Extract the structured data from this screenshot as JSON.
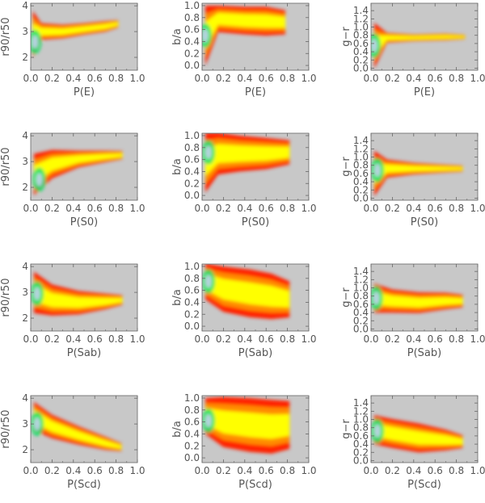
{
  "colors": {
    "panel_bg": "#c8c8c8",
    "axis": "#666666",
    "text": "#555555",
    "density_low": "#ff2000",
    "density_mid": "#ff8c00",
    "density_hi": "#ffff00",
    "density_top": "#00e060"
  },
  "chart_data": {
    "type": "heatmap",
    "rows": [
      "E",
      "S0",
      "Sab",
      "Scd"
    ],
    "columns": [
      "r90/r50",
      "b/a",
      "g-r"
    ],
    "x_ticks": [
      "0.0",
      "0.2",
      "0.4",
      "0.6",
      "0.8",
      "1.0"
    ],
    "xlim": [
      0,
      1
    ],
    "y_axes": {
      "r90/r50": {
        "ylabel": "r90/r50",
        "ylim": [
          1.5,
          4.1
        ],
        "ticks": [
          "2",
          "3",
          "4"
        ]
      },
      "b/a": {
        "ylabel": "b/a",
        "ylim": [
          -0.08,
          1.04
        ],
        "ticks": [
          "0.0",
          "0.2",
          "0.4",
          "0.6",
          "0.8",
          "1.0"
        ]
      },
      "g-r": {
        "ylabel": "g−r",
        "ylim": [
          -0.05,
          1.58
        ],
        "ticks": [
          "0.0",
          "0.2",
          "0.4",
          "0.6",
          "0.8",
          "1.0",
          "1.2",
          "1.4"
        ]
      }
    },
    "panels": [
      {
        "xlabel": "P(E)",
        "ylabel": "r90/r50",
        "ridge": [
          [
            0.02,
            2.9
          ],
          [
            0.1,
            3.0
          ],
          [
            0.3,
            3.0
          ],
          [
            0.5,
            3.1
          ],
          [
            0.7,
            3.2
          ],
          [
            0.82,
            3.3
          ]
        ],
        "halfwidth": [
          0.9,
          0.32,
          0.26,
          0.22,
          0.2,
          0.14
        ],
        "peak": [
          0.04,
          2.6
        ]
      },
      {
        "xlabel": "P(E)",
        "ylabel": "b/a",
        "ridge": [
          [
            0.03,
            0.5
          ],
          [
            0.15,
            0.78
          ],
          [
            0.4,
            0.75
          ],
          [
            0.6,
            0.74
          ],
          [
            0.78,
            0.72
          ]
        ],
        "halfwidth": [
          0.5,
          0.22,
          0.23,
          0.24,
          0.2
        ],
        "peak": [
          0.03,
          0.5
        ]
      },
      {
        "xlabel": "P(E)",
        "ylabel": "g−r",
        "ridge": [
          [
            0.03,
            0.55
          ],
          [
            0.15,
            0.74
          ],
          [
            0.4,
            0.74
          ],
          [
            0.7,
            0.76
          ],
          [
            0.88,
            0.76
          ]
        ],
        "halfwidth": [
          0.55,
          0.12,
          0.08,
          0.08,
          0.05
        ],
        "peak": [
          0.03,
          0.55
        ]
      },
      {
        "xlabel": "P(S0)",
        "ylabel": "r90/r50",
        "ridge": [
          [
            0.03,
            2.5
          ],
          [
            0.2,
            2.9
          ],
          [
            0.45,
            3.1
          ],
          [
            0.7,
            3.2
          ],
          [
            0.86,
            3.25
          ]
        ],
        "halfwidth": [
          0.8,
          0.55,
          0.32,
          0.22,
          0.15
        ],
        "peak": [
          0.08,
          2.3
        ]
      },
      {
        "xlabel": "P(S0)",
        "ylabel": "b/a",
        "ridge": [
          [
            0.03,
            0.55
          ],
          [
            0.15,
            0.7
          ],
          [
            0.35,
            0.7
          ],
          [
            0.6,
            0.7
          ],
          [
            0.82,
            0.72
          ]
        ],
        "halfwidth": [
          0.5,
          0.35,
          0.3,
          0.26,
          0.2
        ],
        "peak": [
          0.06,
          0.72
        ]
      },
      {
        "xlabel": "P(S0)",
        "ylabel": "g−r",
        "ridge": [
          [
            0.03,
            0.6
          ],
          [
            0.15,
            0.72
          ],
          [
            0.4,
            0.72
          ],
          [
            0.65,
            0.72
          ],
          [
            0.86,
            0.72
          ]
        ],
        "halfwidth": [
          0.55,
          0.22,
          0.14,
          0.1,
          0.07
        ],
        "peak": [
          0.06,
          0.68
        ]
      },
      {
        "xlabel": "P(Sab)",
        "ylabel": "r90/r50",
        "ridge": [
          [
            0.03,
            3.0
          ],
          [
            0.2,
            2.7
          ],
          [
            0.45,
            2.6
          ],
          [
            0.7,
            2.65
          ],
          [
            0.86,
            2.7
          ]
        ],
        "halfwidth": [
          0.8,
          0.6,
          0.45,
          0.3,
          0.18
        ],
        "peak": [
          0.06,
          2.95
        ]
      },
      {
        "xlabel": "P(Sab)",
        "ylabel": "b/a",
        "ridge": [
          [
            0.03,
            0.75
          ],
          [
            0.2,
            0.62
          ],
          [
            0.45,
            0.55
          ],
          [
            0.65,
            0.5
          ],
          [
            0.82,
            0.45
          ]
        ],
        "halfwidth": [
          0.3,
          0.38,
          0.4,
          0.38,
          0.3
        ],
        "peak": [
          0.06,
          0.75
        ]
      },
      {
        "xlabel": "P(Sab)",
        "ylabel": "g−r",
        "ridge": [
          [
            0.03,
            0.75
          ],
          [
            0.2,
            0.68
          ],
          [
            0.45,
            0.64
          ],
          [
            0.7,
            0.68
          ],
          [
            0.86,
            0.68
          ]
        ],
        "halfwidth": [
          0.35,
          0.28,
          0.25,
          0.2,
          0.15
        ],
        "peak": [
          0.05,
          0.75
        ]
      },
      {
        "xlabel": "P(Scd)",
        "ylabel": "r90/r50",
        "ridge": [
          [
            0.03,
            3.3
          ],
          [
            0.2,
            2.9
          ],
          [
            0.45,
            2.55
          ],
          [
            0.7,
            2.25
          ],
          [
            0.85,
            2.1
          ]
        ],
        "halfwidth": [
          0.55,
          0.45,
          0.35,
          0.25,
          0.15
        ],
        "peak": [
          0.06,
          3.0
        ]
      },
      {
        "xlabel": "P(Scd)",
        "ylabel": "b/a",
        "ridge": [
          [
            0.03,
            0.7
          ],
          [
            0.2,
            0.6
          ],
          [
            0.45,
            0.55
          ],
          [
            0.65,
            0.52
          ],
          [
            0.82,
            0.55
          ]
        ],
        "halfwidth": [
          0.3,
          0.42,
          0.45,
          0.45,
          0.4
        ],
        "peak": [
          0.06,
          0.62
        ]
      },
      {
        "xlabel": "P(Scd)",
        "ylabel": "g−r",
        "ridge": [
          [
            0.03,
            0.75
          ],
          [
            0.2,
            0.66
          ],
          [
            0.45,
            0.55
          ],
          [
            0.7,
            0.5
          ],
          [
            0.86,
            0.46
          ]
        ],
        "halfwidth": [
          0.35,
          0.35,
          0.35,
          0.25,
          0.15
        ],
        "peak": [
          0.06,
          0.72
        ]
      }
    ]
  }
}
